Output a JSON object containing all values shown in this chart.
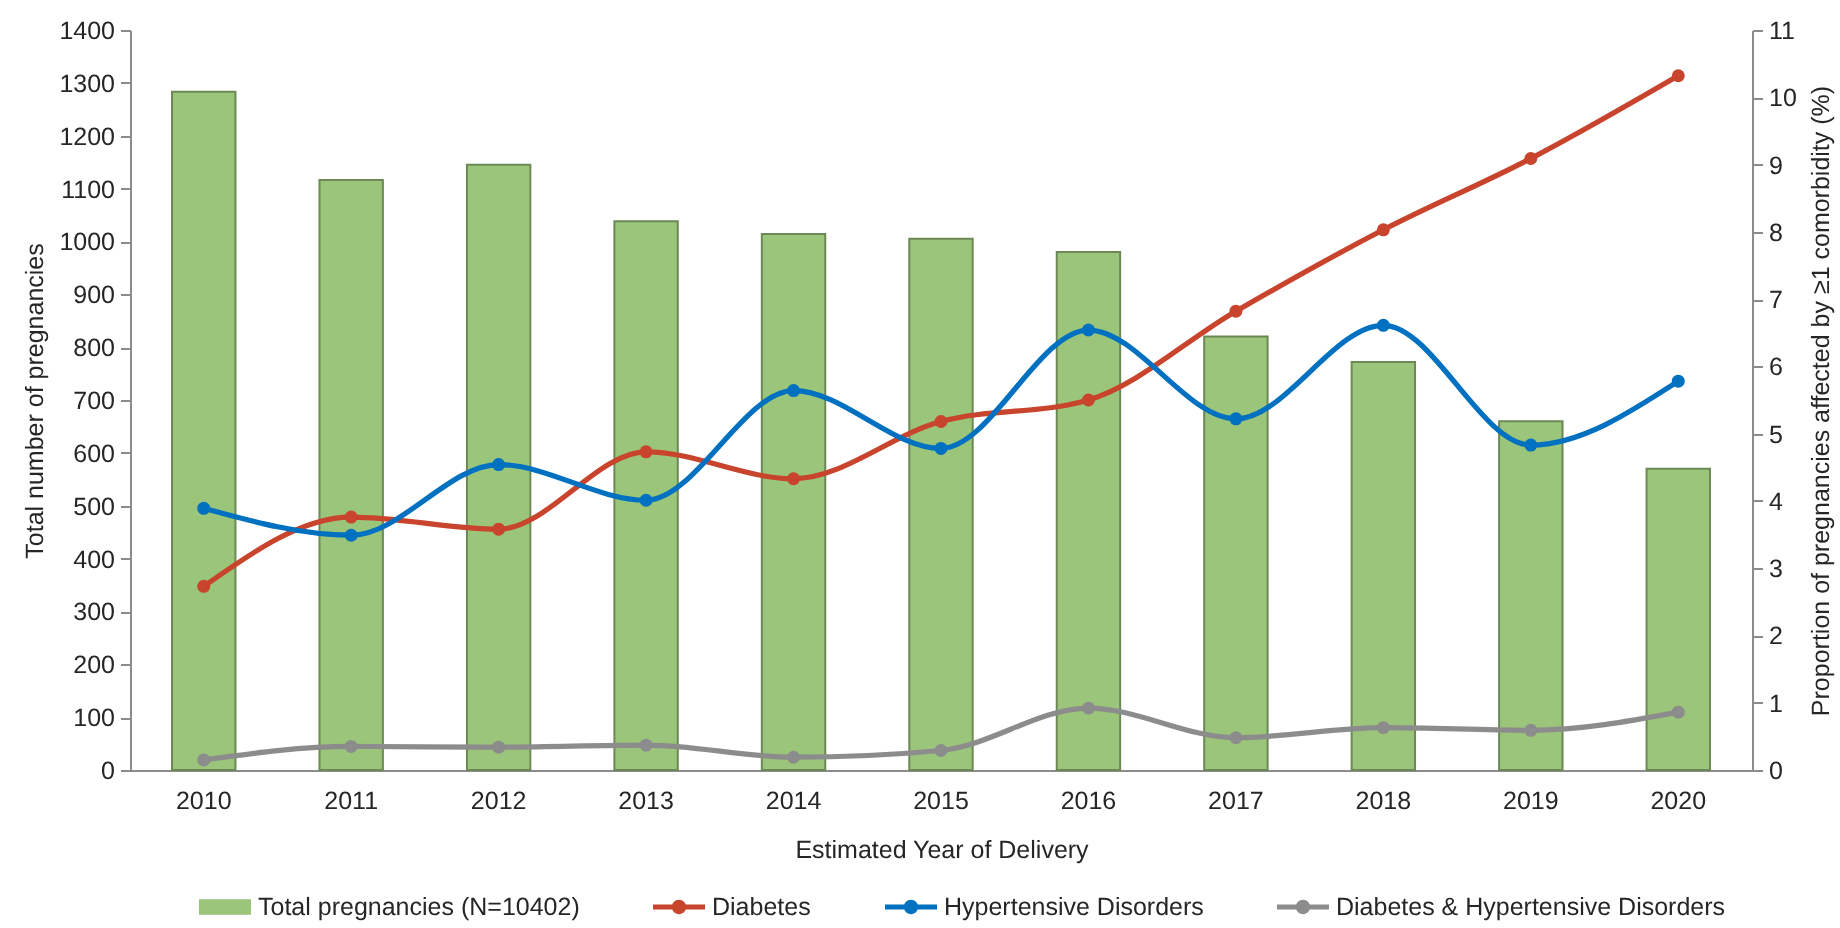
{
  "chart_data": {
    "type": "bar",
    "categories": [
      "2010",
      "2011",
      "2012",
      "2013",
      "2014",
      "2015",
      "2016",
      "2017",
      "2018",
      "2019",
      "2020"
    ],
    "xlabel": "Estimated Year of Delivery",
    "ylabel": "Total number of pregnancies",
    "y2label": "Proportion of pregnancies affected by ≥1 comorbidity (%)",
    "ylim": [
      0,
      1400
    ],
    "yticks": [
      0,
      100,
      200,
      300,
      400,
      500,
      600,
      700,
      800,
      900,
      1000,
      1100,
      1200,
      1300,
      1400
    ],
    "y2lim": [
      0,
      11
    ],
    "y2ticks": [
      0,
      1,
      2,
      3,
      4,
      5,
      6,
      7,
      8,
      9,
      10,
      11
    ],
    "legend": "bottom",
    "marker": "circle",
    "line_style": "solid",
    "series": [
      {
        "name": "Total pregnancies (N=10402)",
        "color": "#9bc57a",
        "values": [
          1283,
          1116,
          1145,
          1038,
          1014,
          1005,
          980,
          820,
          772,
          660,
          570
        ]
      },
      {
        "name": "Diabetes",
        "type": "line",
        "axis": "y2",
        "color": "#c8442c",
        "values": [
          2.73,
          3.76,
          3.58,
          4.73,
          4.33,
          5.18,
          5.5,
          6.82,
          8.03,
          9.09,
          10.32
        ]
      },
      {
        "name": "Hypertensive Disorders",
        "type": "line",
        "axis": "y2",
        "color": "#0070c0",
        "values": [
          3.89,
          3.49,
          4.54,
          4.01,
          5.64,
          4.78,
          6.54,
          5.22,
          6.61,
          4.83,
          5.78
        ]
      },
      {
        "name": "Diabetes & Hypertensive Disorders",
        "type": "line",
        "axis": "y2",
        "color": "#8c8c8c",
        "values": [
          0.15,
          0.35,
          0.34,
          0.37,
          0.19,
          0.29,
          0.92,
          0.48,
          0.63,
          0.59,
          0.86
        ]
      }
    ]
  }
}
